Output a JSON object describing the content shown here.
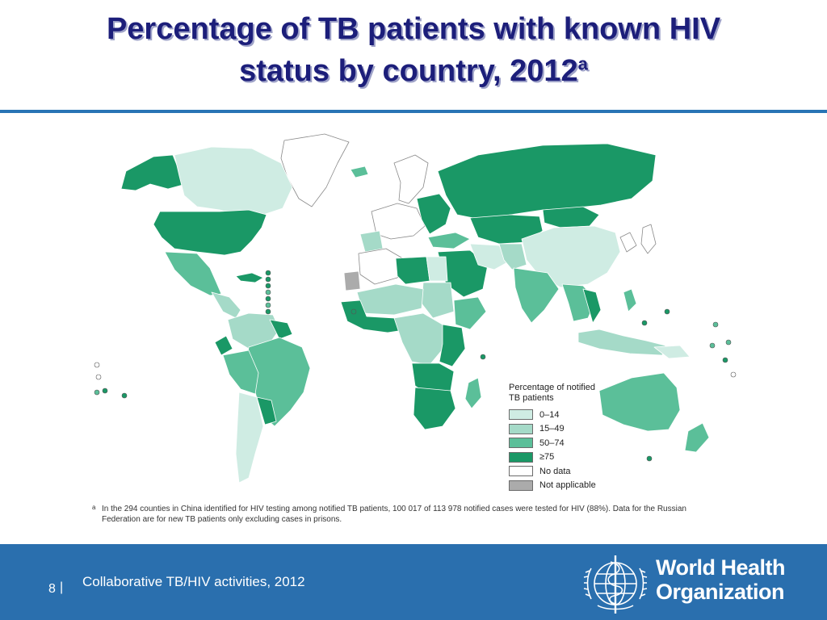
{
  "title": {
    "line1": "Percentage of TB patients with known HIV",
    "line2": "status by country, 2012",
    "superscript": "a"
  },
  "legend": {
    "title": "Percentage of notified TB patients",
    "items": [
      {
        "label": "0–14",
        "color": "#cfece3"
      },
      {
        "label": "15–49",
        "color": "#a5dac8"
      },
      {
        "label": "50–74",
        "color": "#5bbf99"
      },
      {
        "label": "≥75",
        "color": "#1a9866"
      },
      {
        "label": "No data",
        "color": "#ffffff"
      },
      {
        "label": "Not applicable",
        "color": "#ababab"
      }
    ]
  },
  "footnote": {
    "mark": "a",
    "text": "In the 294 counties in China identified for HIV testing among notified TB patients, 100 017 of 113 978 notified cases were tested for HIV (88%). Data for the Russian Federation are for new TB patients only excluding cases in prisons."
  },
  "footer": {
    "page_number": "8",
    "separator": "|",
    "text": "Collaborative TB/HIV activities, 2012",
    "org_line1": "World Health",
    "org_line2": "Organization"
  },
  "colors": {
    "title": "#1c1e7a",
    "rule": "#2874b5",
    "footer_bg": "#2a6fae",
    "border": "#6b6b6b"
  }
}
